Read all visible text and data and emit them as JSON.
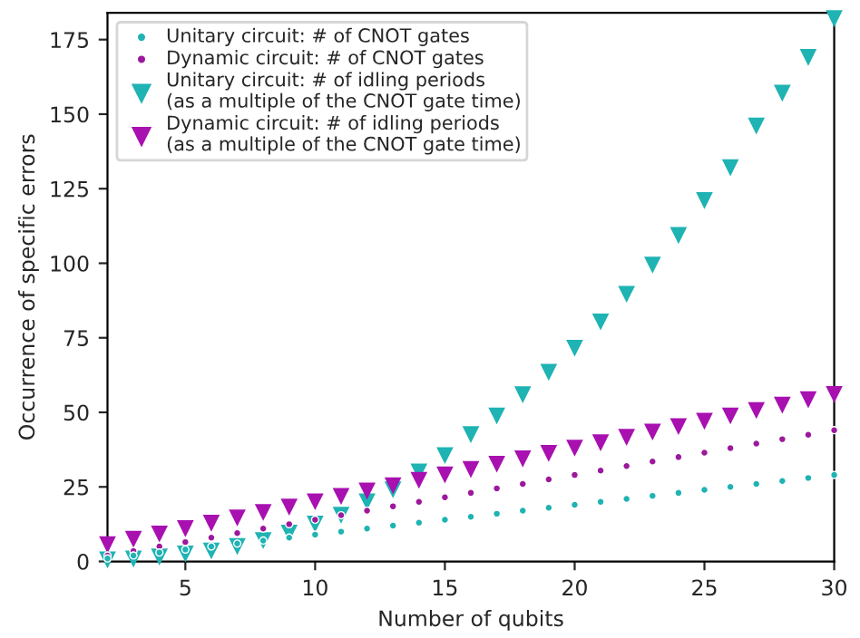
{
  "chart_data": {
    "type": "scatter",
    "xlabel": "Number of qubits",
    "ylabel": "Occurrence of specific errors",
    "x": [
      2,
      3,
      4,
      5,
      6,
      7,
      8,
      9,
      10,
      11,
      12,
      13,
      14,
      15,
      16,
      17,
      18,
      19,
      20,
      21,
      22,
      23,
      24,
      25,
      26,
      27,
      28,
      29,
      30
    ],
    "series": [
      {
        "name": "Unitary circuit: # of CNOT gates",
        "color": "#1fb3b3",
        "marker": "circle",
        "values": [
          1,
          2,
          3,
          4,
          5,
          6,
          7,
          8,
          9,
          10,
          11,
          12,
          13,
          14,
          15,
          16,
          17,
          18,
          19,
          20,
          21,
          22,
          23,
          24,
          25,
          26,
          27,
          28,
          29
        ]
      },
      {
        "name": "Dynamic circuit: # of CNOT gates",
        "color": "#9c189c",
        "marker": "circle",
        "values": [
          2,
          3.5,
          5,
          6.5,
          8,
          9.5,
          11,
          12.5,
          14,
          15.5,
          17,
          18.5,
          20,
          21.5,
          23,
          24.5,
          26,
          27.5,
          29,
          30.5,
          32,
          33.5,
          35,
          36.5,
          38,
          39.5,
          41,
          42.5,
          44
        ]
      },
      {
        "name": "Unitary circuit: # of idling periods\n(as a multiple of the CNOT gate time)",
        "color": "#1fb3b3",
        "marker": "triangle",
        "values": [
          0.5,
          0.8,
          1.5,
          2.5,
          3.5,
          5,
          7,
          9.5,
          12.5,
          15.5,
          20,
          24,
          30,
          35.5,
          42.5,
          48.8,
          55.9,
          63.4,
          71.5,
          80.3,
          89.6,
          99.4,
          109.3,
          121,
          132,
          146,
          157,
          169,
          182
        ]
      },
      {
        "name": "Dynamic circuit: # of idling periods\n(as a multiple of the CNOT gate time)",
        "color": "#a810b0",
        "marker": "triangle",
        "values": [
          5.6,
          7.4,
          9.2,
          11,
          12.8,
          14.6,
          16.4,
          18.2,
          20,
          21.8,
          23.6,
          25.4,
          27.2,
          29,
          30.8,
          32.6,
          34.4,
          36.2,
          38,
          39.8,
          41.6,
          43.4,
          45.2,
          47,
          48.8,
          50.6,
          52.4,
          54.2,
          56
        ]
      }
    ],
    "xlim": [
      2,
      30
    ],
    "xticks": [
      5,
      10,
      15,
      20,
      25,
      30
    ],
    "ylim": [
      0,
      184
    ],
    "yticks": [
      0,
      25,
      50,
      75,
      100,
      125,
      150,
      175
    ],
    "grid": false,
    "legend": "top left"
  }
}
